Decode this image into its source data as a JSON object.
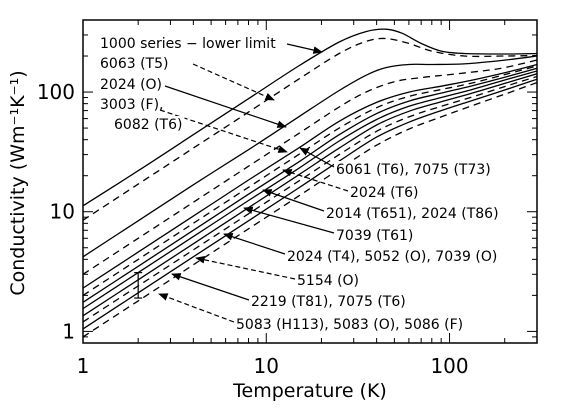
{
  "chart_data": {
    "type": "line",
    "xlabel": "Temperature (K)",
    "ylabel": "Conductivity (Wm⁻¹K⁻¹)",
    "xscale": "log",
    "yscale": "log",
    "xlim": [
      1,
      300
    ],
    "ylim": [
      0.8,
      400
    ],
    "grid": false,
    "x_ticks": [
      {
        "value": 1,
        "label": "1"
      },
      {
        "value": 10,
        "label": "10"
      },
      {
        "value": 100,
        "label": "100"
      }
    ],
    "y_ticks": [
      {
        "value": 1,
        "label": "1"
      },
      {
        "value": 10,
        "label": "10"
      },
      {
        "value": 100,
        "label": "100"
      }
    ],
    "series": [
      {
        "name": "1000 series - lower limit",
        "style": "solid",
        "points": [
          [
            1,
            11.2
          ],
          [
            2,
            22
          ],
          [
            4,
            44
          ],
          [
            8,
            88
          ],
          [
            15,
            165
          ],
          [
            25,
            262
          ],
          [
            35,
            320
          ],
          [
            45,
            335
          ],
          [
            55,
            310
          ],
          [
            70,
            255
          ],
          [
            90,
            220
          ],
          [
            120,
            210
          ],
          [
            200,
            208
          ],
          [
            300,
            210
          ]
        ]
      },
      {
        "name": "6063 (T5)",
        "style": "dashed",
        "points": [
          [
            1,
            8.5
          ],
          [
            2,
            17
          ],
          [
            4,
            34
          ],
          [
            8,
            68
          ],
          [
            15,
            128
          ],
          [
            25,
            210
          ],
          [
            35,
            265
          ],
          [
            45,
            280
          ],
          [
            60,
            255
          ],
          [
            80,
            220
          ],
          [
            120,
            200
          ],
          [
            200,
            200
          ],
          [
            300,
            202
          ]
        ]
      },
      {
        "name": "2024 (O)",
        "style": "solid",
        "points": [
          [
            1,
            4.2
          ],
          [
            2,
            8.4
          ],
          [
            4,
            16.8
          ],
          [
            8,
            33
          ],
          [
            15,
            62
          ],
          [
            25,
            103
          ],
          [
            35,
            138
          ],
          [
            45,
            160
          ],
          [
            60,
            170
          ],
          [
            80,
            170
          ],
          [
            120,
            172
          ],
          [
            200,
            185
          ],
          [
            300,
            200
          ]
        ]
      },
      {
        "name": "3003 (F), 6082 (T6)",
        "style": "dashed",
        "points": [
          [
            1,
            3.0
          ],
          [
            2,
            6
          ],
          [
            4,
            12
          ],
          [
            8,
            24
          ],
          [
            15,
            45
          ],
          [
            25,
            75
          ],
          [
            35,
            100
          ],
          [
            50,
            122
          ],
          [
            70,
            132
          ],
          [
            100,
            140
          ],
          [
            150,
            150
          ],
          [
            200,
            160
          ],
          [
            300,
            185
          ]
        ]
      },
      {
        "name": "6061 (T6), 7075 (T73)",
        "style": "solid",
        "points": [
          [
            1,
            2.3
          ],
          [
            2,
            4.6
          ],
          [
            4,
            9.2
          ],
          [
            8,
            18.4
          ],
          [
            15,
            34
          ],
          [
            25,
            57
          ],
          [
            40,
            82
          ],
          [
            60,
            100
          ],
          [
            90,
            112
          ],
          [
            130,
            125
          ],
          [
            200,
            145
          ],
          [
            300,
            170
          ]
        ]
      },
      {
        "name": "2024 (T6)",
        "style": "dashed",
        "points": [
          [
            1,
            2.0
          ],
          [
            2,
            4
          ],
          [
            4,
            8
          ],
          [
            8,
            16
          ],
          [
            15,
            30
          ],
          [
            25,
            50
          ],
          [
            40,
            74
          ],
          [
            60,
            92
          ],
          [
            90,
            105
          ],
          [
            130,
            118
          ],
          [
            200,
            140
          ],
          [
            300,
            165
          ]
        ]
      },
      {
        "name": "2014 (T651), 2024 (T86)",
        "style": "solid",
        "points": [
          [
            1,
            1.75
          ],
          [
            2,
            3.5
          ],
          [
            4,
            7
          ],
          [
            8,
            14
          ],
          [
            15,
            26
          ],
          [
            25,
            44
          ],
          [
            40,
            66
          ],
          [
            60,
            84
          ],
          [
            90,
            98
          ],
          [
            130,
            112
          ],
          [
            200,
            133
          ],
          [
            300,
            158
          ]
        ]
      },
      {
        "name": "7039 (T61)",
        "style": "solid",
        "points": [
          [
            1,
            1.55
          ],
          [
            2,
            3.1
          ],
          [
            4,
            6.2
          ],
          [
            8,
            12.4
          ],
          [
            15,
            23
          ],
          [
            25,
            39
          ],
          [
            40,
            59
          ],
          [
            60,
            76
          ],
          [
            90,
            90
          ],
          [
            130,
            104
          ],
          [
            200,
            126
          ],
          [
            300,
            150
          ]
        ]
      },
      {
        "name": "2024 (T4), 5052 (O), 7039 (O)",
        "style": "solid",
        "points": [
          [
            1,
            1.35
          ],
          [
            2,
            2.7
          ],
          [
            4,
            5.4
          ],
          [
            8,
            10.8
          ],
          [
            15,
            20.3
          ],
          [
            25,
            34
          ],
          [
            40,
            53
          ],
          [
            60,
            69
          ],
          [
            90,
            83
          ],
          [
            130,
            97
          ],
          [
            200,
            118
          ],
          [
            300,
            142
          ]
        ]
      },
      {
        "name": "5154 (O)",
        "style": "dashed",
        "points": [
          [
            1,
            1.2
          ],
          [
            2,
            2.4
          ],
          [
            4,
            4.8
          ],
          [
            8,
            9.6
          ],
          [
            15,
            18
          ],
          [
            25,
            30
          ],
          [
            40,
            47
          ],
          [
            60,
            62
          ],
          [
            90,
            76
          ],
          [
            130,
            90
          ],
          [
            200,
            111
          ],
          [
            300,
            135
          ]
        ]
      },
      {
        "name": "2219 (T81), 7075 (T6)",
        "style": "solid",
        "points": [
          [
            1,
            1.05
          ],
          [
            2,
            2.1
          ],
          [
            4,
            4.2
          ],
          [
            8,
            8.4
          ],
          [
            15,
            15.8
          ],
          [
            25,
            26.5
          ],
          [
            40,
            42
          ],
          [
            60,
            56
          ],
          [
            90,
            70
          ],
          [
            130,
            84
          ],
          [
            200,
            104
          ],
          [
            300,
            128
          ]
        ]
      },
      {
        "name": "5083 (H113), 5083 (O), 5086 (F)",
        "style": "dashed",
        "points": [
          [
            1,
            0.9
          ],
          [
            2,
            1.8
          ],
          [
            4,
            3.6
          ],
          [
            8,
            7.2
          ],
          [
            15,
            13.5
          ],
          [
            25,
            22.7
          ],
          [
            40,
            36
          ],
          [
            60,
            49
          ],
          [
            90,
            62
          ],
          [
            130,
            76
          ],
          [
            200,
            96
          ],
          [
            300,
            120
          ]
        ]
      }
    ],
    "annotations": [
      {
        "text": "1000 series − lower limit",
        "series": 0,
        "style": "solid"
      },
      {
        "text": "6063 (T5)",
        "series": 1,
        "style": "dashed"
      },
      {
        "text": "2024 (O)",
        "series": 2,
        "style": "solid"
      },
      {
        "text": "3003 (F),",
        "series": 3,
        "style": "dashed"
      },
      {
        "text": "6082 (T6)",
        "series": 3,
        "style": "none"
      },
      {
        "text": "6061 (T6), 7075 (T73)",
        "series": 4,
        "style": "solid"
      },
      {
        "text": "2024 (T6)",
        "series": 5,
        "style": "dashed"
      },
      {
        "text": "2014 (T651), 2024 (T86)",
        "series": 6,
        "style": "solid"
      },
      {
        "text": "7039 (T61)",
        "series": 7,
        "style": "solid"
      },
      {
        "text": "2024 (T4), 5052 (O), 7039 (O)",
        "series": 8,
        "style": "solid"
      },
      {
        "text": "5154 (O)",
        "series": 9,
        "style": "dashed"
      },
      {
        "text": "2219 (T81), 7075 (T6)",
        "series": 10,
        "style": "solid"
      },
      {
        "text": "5083 (H113), 5083 (O), 5086 (F)",
        "series": 11,
        "style": "dashed"
      }
    ],
    "error_bar": {
      "x": 2,
      "ylow": 1.9,
      "yhigh": 3.1
    }
  }
}
